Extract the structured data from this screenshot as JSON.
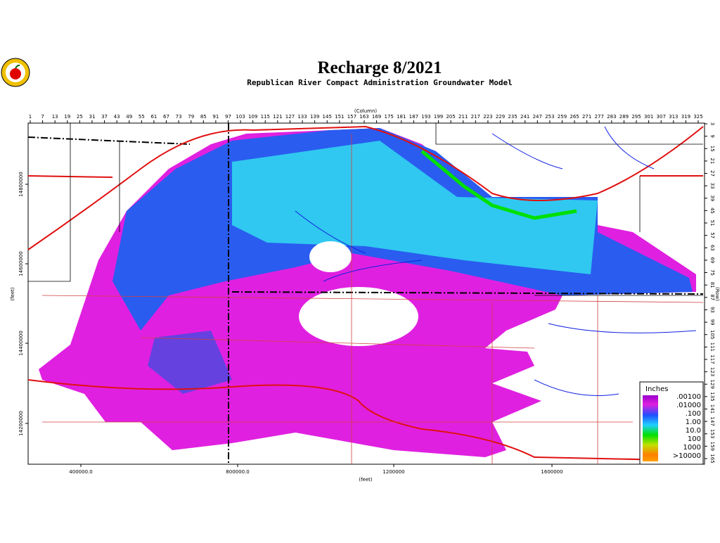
{
  "header": {
    "title": "Recharge 8/2021",
    "subtitle": "Republican River Compact Administration Groundwater Model"
  },
  "axes": {
    "top_label": "(Column)",
    "right_label": "(Row)",
    "bottom_label": "(feet)",
    "left_label": "(feet)",
    "columns": [
      1,
      7,
      13,
      19,
      25,
      31,
      37,
      43,
      49,
      55,
      61,
      67,
      73,
      79,
      85,
      91,
      97,
      103,
      109,
      115,
      121,
      127,
      133,
      139,
      145,
      151,
      157,
      163,
      169,
      175,
      181,
      187,
      193,
      199,
      205,
      211,
      217,
      223,
      229,
      235,
      241,
      247,
      253,
      259,
      265,
      271,
      277,
      283,
      289,
      295,
      301,
      307,
      313,
      319,
      325
    ],
    "rows": [
      3,
      9,
      15,
      21,
      27,
      33,
      39,
      45,
      51,
      57,
      63,
      69,
      75,
      81,
      87,
      93,
      99,
      105,
      111,
      117,
      123,
      129,
      135,
      141,
      147,
      153,
      159,
      165
    ],
    "x_ticks": [
      "400000.0",
      "800000.0",
      "1200000",
      "1600000"
    ],
    "y_ticks": [
      "14800000",
      "14600000",
      "14400000",
      "14200000"
    ]
  },
  "legend": {
    "title": "Inches",
    "labels": [
      ".00100",
      ".01000",
      ".100",
      "1.00",
      "10.0",
      "100",
      "1000",
      ">10000"
    ]
  }
}
